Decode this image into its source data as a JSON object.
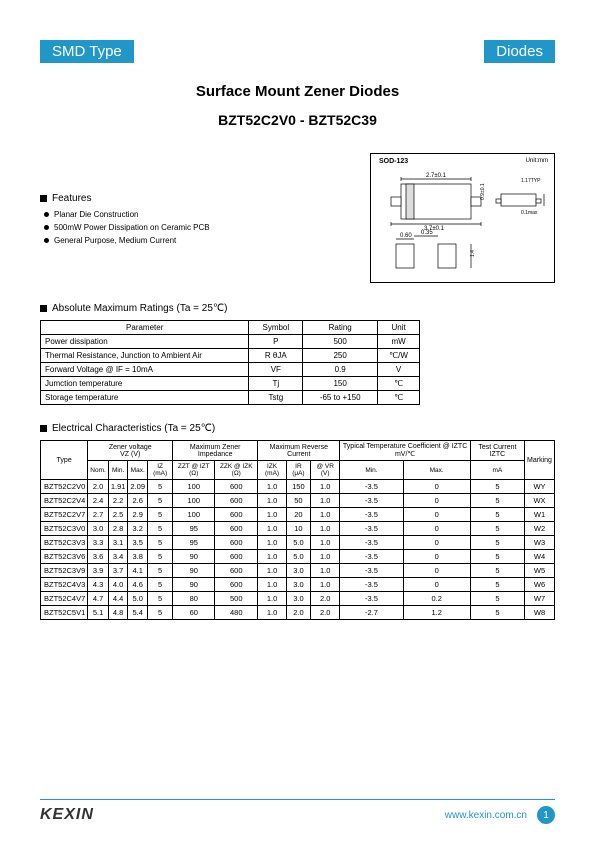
{
  "header": {
    "left": "SMD Type",
    "right": "Diodes"
  },
  "title": {
    "line1": "Surface Mount Zener Diodes",
    "line2": "BZT52C2V0 - BZT52C39"
  },
  "features": {
    "heading": "Features",
    "items": [
      "Planar Die Construction",
      "500mW Power Dissipation on Ceramic PCB",
      "General Purpose, Medium Current"
    ]
  },
  "package": {
    "label": "SOD-123",
    "unit": "Unit:mm",
    "dims": {
      "w_top": "2.7±0.1",
      "w_bot": "3.7±0.1",
      "lead": "0.60",
      "gap": "0.35",
      "h1": "0.9±0.1",
      "h2": "1.17TYP",
      "h3": "0.1max",
      "pad": "1.4"
    }
  },
  "ratings": {
    "heading": "Absolute Maximum Ratings (Ta = 25℃)",
    "columns": [
      "Parameter",
      "Symbol",
      "Rating",
      "Unit"
    ],
    "rows": [
      [
        "Power dissipation",
        "P",
        "500",
        "mW"
      ],
      [
        "Thermal Resistance, Junction to Ambient Air",
        "R θJA",
        "250",
        "℃/W"
      ],
      [
        "Forward Voltage        @ IF = 10mA",
        "VF",
        "0.9",
        "V"
      ],
      [
        "Jumction temperature",
        "Tj",
        "150",
        "℃"
      ],
      [
        "Storage temperature",
        "Tstg",
        "-65 to +150",
        "℃"
      ]
    ]
  },
  "electrical": {
    "heading": "Electrical Characteristics (Ta = 25℃)",
    "group_headers": [
      {
        "label": "Type",
        "colspan": 1,
        "rowspan": 2
      },
      {
        "label": "Zener voltage\nVZ  (V)",
        "colspan": 4,
        "rowspan": 1
      },
      {
        "label": "Maximum Zener Impedance",
        "colspan": 2,
        "rowspan": 1
      },
      {
        "label": "Maximum Reverse Current",
        "colspan": 3,
        "rowspan": 1
      },
      {
        "label": "Typical Temperature Coefficient @ IZTC mV/℃",
        "colspan": 2,
        "rowspan": 1
      },
      {
        "label": "Test Current IZTC",
        "colspan": 1,
        "rowspan": 1
      },
      {
        "label": "Marking",
        "colspan": 1,
        "rowspan": 2
      }
    ],
    "sub_headers": [
      "Nom.",
      "Min.",
      "Max.",
      "IZ (mA)",
      "ZZT @ IZT (Ω)",
      "ZZK @ IZK (Ω)",
      "IZK (mA)",
      "IR (μA)",
      "@ VR (V)",
      "Min.",
      "Max.",
      "mA"
    ],
    "rows": [
      [
        "BZT52C2V0",
        "2.0",
        "1.91",
        "2.09",
        "5",
        "100",
        "600",
        "1.0",
        "150",
        "1.0",
        "-3.5",
        "0",
        "5",
        "WY"
      ],
      [
        "BZT52C2V4",
        "2.4",
        "2.2",
        "2.6",
        "5",
        "100",
        "600",
        "1.0",
        "50",
        "1.0",
        "-3.5",
        "0",
        "5",
        "WX"
      ],
      [
        "BZT52C2V7",
        "2.7",
        "2.5",
        "2.9",
        "5",
        "100",
        "600",
        "1.0",
        "20",
        "1.0",
        "-3.5",
        "0",
        "5",
        "W1"
      ],
      [
        "BZT52C3V0",
        "3.0",
        "2.8",
        "3.2",
        "5",
        "95",
        "600",
        "1.0",
        "10",
        "1.0",
        "-3.5",
        "0",
        "5",
        "W2"
      ],
      [
        "BZT52C3V3",
        "3.3",
        "3.1",
        "3.5",
        "5",
        "95",
        "600",
        "1.0",
        "5.0",
        "1.0",
        "-3.5",
        "0",
        "5",
        "W3"
      ],
      [
        "BZT52C3V6",
        "3.6",
        "3.4",
        "3.8",
        "5",
        "90",
        "600",
        "1.0",
        "5.0",
        "1.0",
        "-3.5",
        "0",
        "5",
        "W4"
      ],
      [
        "BZT52C3V9",
        "3.9",
        "3.7",
        "4.1",
        "5",
        "90",
        "600",
        "1.0",
        "3.0",
        "1.0",
        "-3.5",
        "0",
        "5",
        "W5"
      ],
      [
        "BZT52C4V3",
        "4.3",
        "4.0",
        "4.6",
        "5",
        "90",
        "600",
        "1.0",
        "3.0",
        "1.0",
        "-3.5",
        "0",
        "5",
        "W6"
      ],
      [
        "BZT52C4V7",
        "4.7",
        "4.4",
        "5.0",
        "5",
        "80",
        "500",
        "1.0",
        "3.0",
        "2.0",
        "-3.5",
        "0.2",
        "5",
        "W7"
      ],
      [
        "BZT52C5V1",
        "5.1",
        "4.8",
        "5.4",
        "5",
        "60",
        "480",
        "1.0",
        "2.0",
        "2.0",
        "-2.7",
        "1.2",
        "5",
        "W8"
      ]
    ]
  },
  "footer": {
    "logo": "KEXIN",
    "url": "www.kexin.com.cn",
    "page": "1"
  },
  "colors": {
    "accent": "#2196c8"
  }
}
